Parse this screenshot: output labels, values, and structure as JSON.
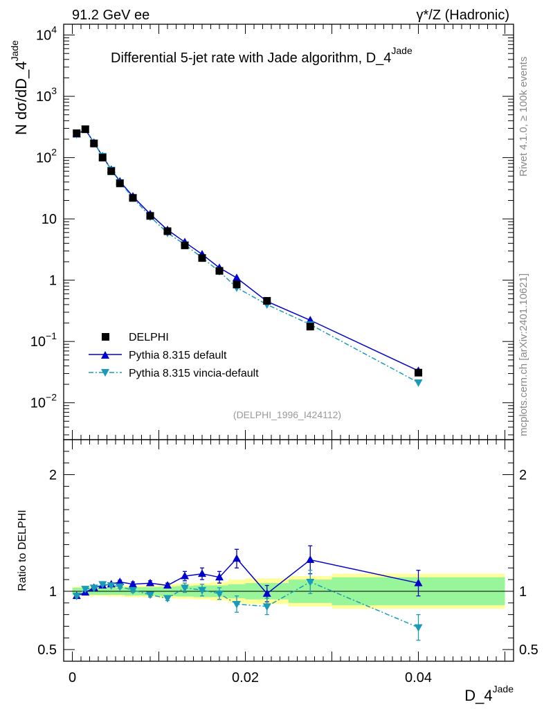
{
  "header": {
    "energy": "91.2 GeV ee",
    "process": "γ*/Z (Hadronic)",
    "title": "Differential 5-jet rate with Jade algorithm, D_4",
    "title_sup": "Jade",
    "ylabel": "N  dσ/dD_4",
    "ylabel_sup": "Jade",
    "xlabel": "D_4",
    "xlabel_sup": "Jade",
    "ratio_ylabel": "Ratio to DELPHI",
    "side_label_1": "Rivet 4.1.0, ≥ 100k events",
    "side_label_2": "mcplots.cern.ch [arXiv:2401.10621]",
    "analysis": "(DELPHI_1996_I424112)"
  },
  "colors": {
    "data": "#000000",
    "pythia_default": "#0000cc",
    "vincia": "#1a9ab8",
    "band_outer": "#ffff99",
    "band_inner": "#99f599"
  },
  "chart_data": {
    "type": "line",
    "xlim": [
      -0.001,
      0.051
    ],
    "ylim": [
      0.0025,
      15000
    ],
    "yscale": "log",
    "ratio_ylim": [
      0.4,
      2.3
    ],
    "xticks": [
      {
        "value": 0,
        "label": "0"
      },
      {
        "value": 0.02,
        "label": "0.02"
      },
      {
        "value": 0.04,
        "label": "0.04"
      }
    ],
    "yticks_main": [
      {
        "value": 0.01,
        "base": "10",
        "exp": "−2"
      },
      {
        "value": 0.1,
        "base": "10",
        "exp": "−1"
      },
      {
        "value": 1,
        "base": "1",
        "exp": ""
      },
      {
        "value": 10,
        "base": "10",
        "exp": ""
      },
      {
        "value": 100,
        "base": "10",
        "exp": "2"
      },
      {
        "value": 1000,
        "base": "10",
        "exp": "3"
      },
      {
        "value": 10000,
        "base": "10",
        "exp": "4"
      }
    ],
    "yticks_ratio": [
      {
        "value": 0.5,
        "label": "0.5"
      },
      {
        "value": 1,
        "label": "1"
      },
      {
        "value": 2,
        "label": "2"
      }
    ],
    "legend": [
      {
        "key": "data",
        "label": "DELPHI"
      },
      {
        "key": "pythia_default",
        "label": "Pythia 8.315 default"
      },
      {
        "key": "vincia",
        "label": "Pythia 8.315 vincia-default"
      }
    ],
    "bins": [
      [
        0,
        0.001
      ],
      [
        0.001,
        0.002
      ],
      [
        0.002,
        0.003
      ],
      [
        0.003,
        0.004
      ],
      [
        0.004,
        0.005
      ],
      [
        0.005,
        0.006
      ],
      [
        0.006,
        0.008
      ],
      [
        0.008,
        0.01
      ],
      [
        0.01,
        0.012
      ],
      [
        0.012,
        0.014
      ],
      [
        0.014,
        0.016
      ],
      [
        0.016,
        0.018
      ],
      [
        0.018,
        0.02
      ],
      [
        0.02,
        0.025
      ],
      [
        0.025,
        0.03
      ],
      [
        0.03,
        0.05
      ]
    ],
    "x": [
      0.0005,
      0.0015,
      0.0025,
      0.0035,
      0.0045,
      0.0055,
      0.007,
      0.009,
      0.011,
      0.013,
      0.015,
      0.017,
      0.019,
      0.0225,
      0.0275,
      0.04
    ],
    "data": [
      250,
      290,
      170,
      100,
      60,
      38,
      22,
      11.2,
      6.3,
      3.7,
      2.3,
      1.42,
      0.85,
      0.46,
      0.175,
      0.031
    ],
    "data_rel_err": [
      0.03,
      0.03,
      0.03,
      0.03,
      0.03,
      0.03,
      0.03,
      0.04,
      0.04,
      0.05,
      0.05,
      0.06,
      0.06,
      0.07,
      0.1,
      0.13
    ],
    "band_inner": [
      0.03,
      0.03,
      0.03,
      0.03,
      0.03,
      0.03,
      0.035,
      0.035,
      0.04,
      0.045,
      0.05,
      0.05,
      0.06,
      0.07,
      0.1,
      0.12
    ],
    "band_outer": [
      0.04,
      0.04,
      0.04,
      0.04,
      0.045,
      0.045,
      0.05,
      0.05,
      0.06,
      0.065,
      0.07,
      0.08,
      0.1,
      0.11,
      0.13,
      0.15
    ],
    "series": [
      {
        "key": "pythia_default",
        "name": "Pythia 8.315 default",
        "ratio": [
          0.96,
          0.99,
          1.03,
          1.05,
          1.06,
          1.08,
          1.06,
          1.07,
          1.05,
          1.13,
          1.15,
          1.12,
          1.28,
          0.98,
          1.27,
          1.07
        ],
        "ratio_err": [
          0.01,
          0.01,
          0.01,
          0.01,
          0.01,
          0.015,
          0.02,
          0.02,
          0.02,
          0.04,
          0.05,
          0.05,
          0.08,
          0.07,
          0.12,
          0.11
        ]
      },
      {
        "key": "vincia",
        "name": "Pythia 8.315 vincia-default",
        "ratio": [
          0.96,
          1.02,
          1.03,
          1.06,
          1.05,
          1.04,
          1.01,
          0.97,
          0.94,
          1.03,
          1.01,
          0.98,
          0.89,
          0.87,
          1.08,
          0.69
        ],
        "ratio_err": [
          0.01,
          0.01,
          0.01,
          0.01,
          0.01,
          0.015,
          0.02,
          0.02,
          0.02,
          0.04,
          0.05,
          0.05,
          0.07,
          0.07,
          0.1,
          0.11
        ]
      }
    ]
  }
}
